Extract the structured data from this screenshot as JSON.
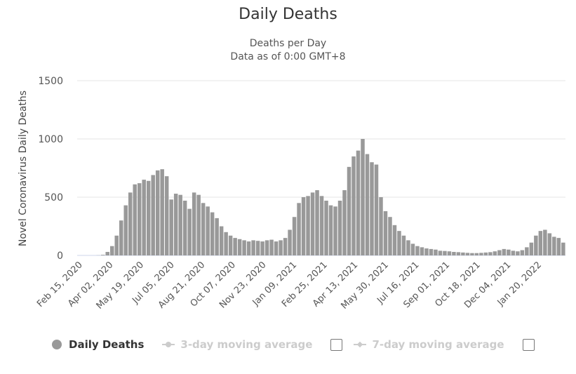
{
  "chart_data": {
    "type": "bar",
    "title": "Daily Deaths",
    "subtitle": [
      "Deaths per Day",
      "Data as of 0:00 GMT+8"
    ],
    "xlabel": "",
    "ylabel": "Novel Coronavirus Daily Deaths",
    "ylim": [
      0,
      1500
    ],
    "yticks": [
      0,
      500,
      1000,
      1500
    ],
    "grid": true,
    "x_start": "Feb 15, 2020",
    "interval_days": 7,
    "x_tick_every_days": 47,
    "xticks": [
      "Feb 15, 2020",
      "Apr 02, 2020",
      "May 19, 2020",
      "Jul 05, 2020",
      "Aug 21, 2020",
      "Oct 07, 2020",
      "Nov 23, 2020",
      "Jan 09, 2021",
      "Feb 25, 2021",
      "Apr 13, 2021",
      "May 30, 2021",
      "Jul 16, 2021",
      "Sep 01, 2021",
      "Oct 18, 2021",
      "Dec 04, 2021",
      "Jan 20, 2022"
    ],
    "series": [
      {
        "name": "Daily Deaths",
        "color": "#999999",
        "values": [
          0,
          0,
          0,
          1,
          5,
          30,
          80,
          170,
          300,
          430,
          540,
          610,
          620,
          650,
          640,
          690,
          730,
          740,
          680,
          480,
          530,
          520,
          470,
          400,
          540,
          520,
          450,
          420,
          370,
          320,
          250,
          200,
          170,
          150,
          140,
          130,
          120,
          130,
          125,
          120,
          130,
          135,
          120,
          130,
          150,
          220,
          330,
          450,
          500,
          510,
          540,
          560,
          510,
          470,
          430,
          420,
          470,
          560,
          760,
          850,
          900,
          1000,
          870,
          800,
          780,
          500,
          380,
          330,
          260,
          210,
          170,
          130,
          100,
          80,
          70,
          60,
          55,
          50,
          40,
          38,
          35,
          30,
          28,
          25,
          22,
          20,
          20,
          22,
          25,
          28,
          35,
          45,
          55,
          50,
          40,
          35,
          45,
          70,
          110,
          170,
          210,
          220,
          190,
          160,
          150,
          110
        ]
      },
      {
        "name": "3-day moving average",
        "color": "#cccccc",
        "visible": false
      },
      {
        "name": "7-day moving average",
        "color": "#cccccc",
        "visible": false
      }
    ],
    "legend_position": "bottom"
  }
}
